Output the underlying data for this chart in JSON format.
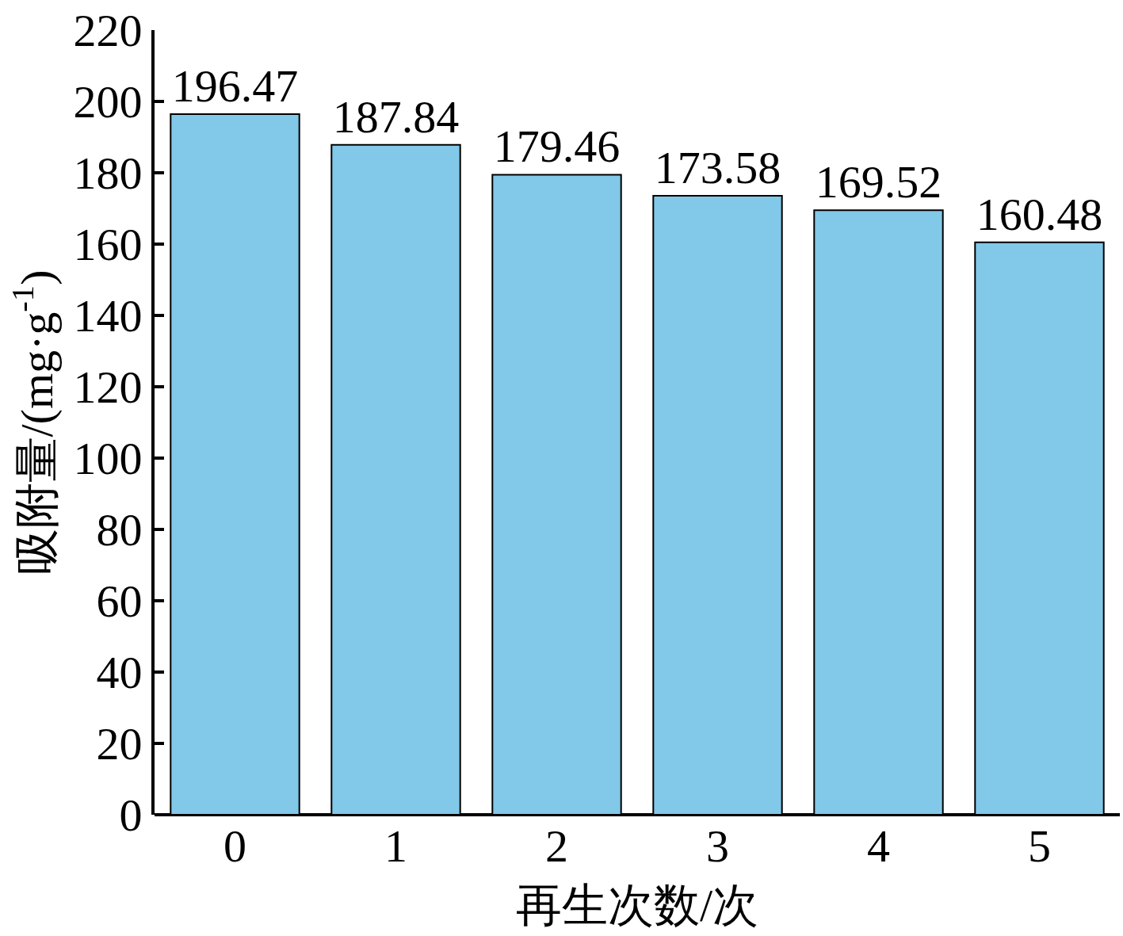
{
  "chart_data": {
    "type": "bar",
    "categories": [
      "0",
      "1",
      "2",
      "3",
      "4",
      "5"
    ],
    "values": [
      196.47,
      187.84,
      179.46,
      173.58,
      169.52,
      160.48
    ],
    "color": "#82c8e8",
    "xlabel": "再生次数/次",
    "ylabel": "吸附量/(mg·g$^{-1}$)",
    "ylim": [
      0,
      220
    ],
    "yticks": [
      0,
      20,
      40,
      60,
      80,
      100,
      120,
      140,
      160,
      180,
      200,
      220
    ],
    "data_labels": true,
    "grid": false
  }
}
